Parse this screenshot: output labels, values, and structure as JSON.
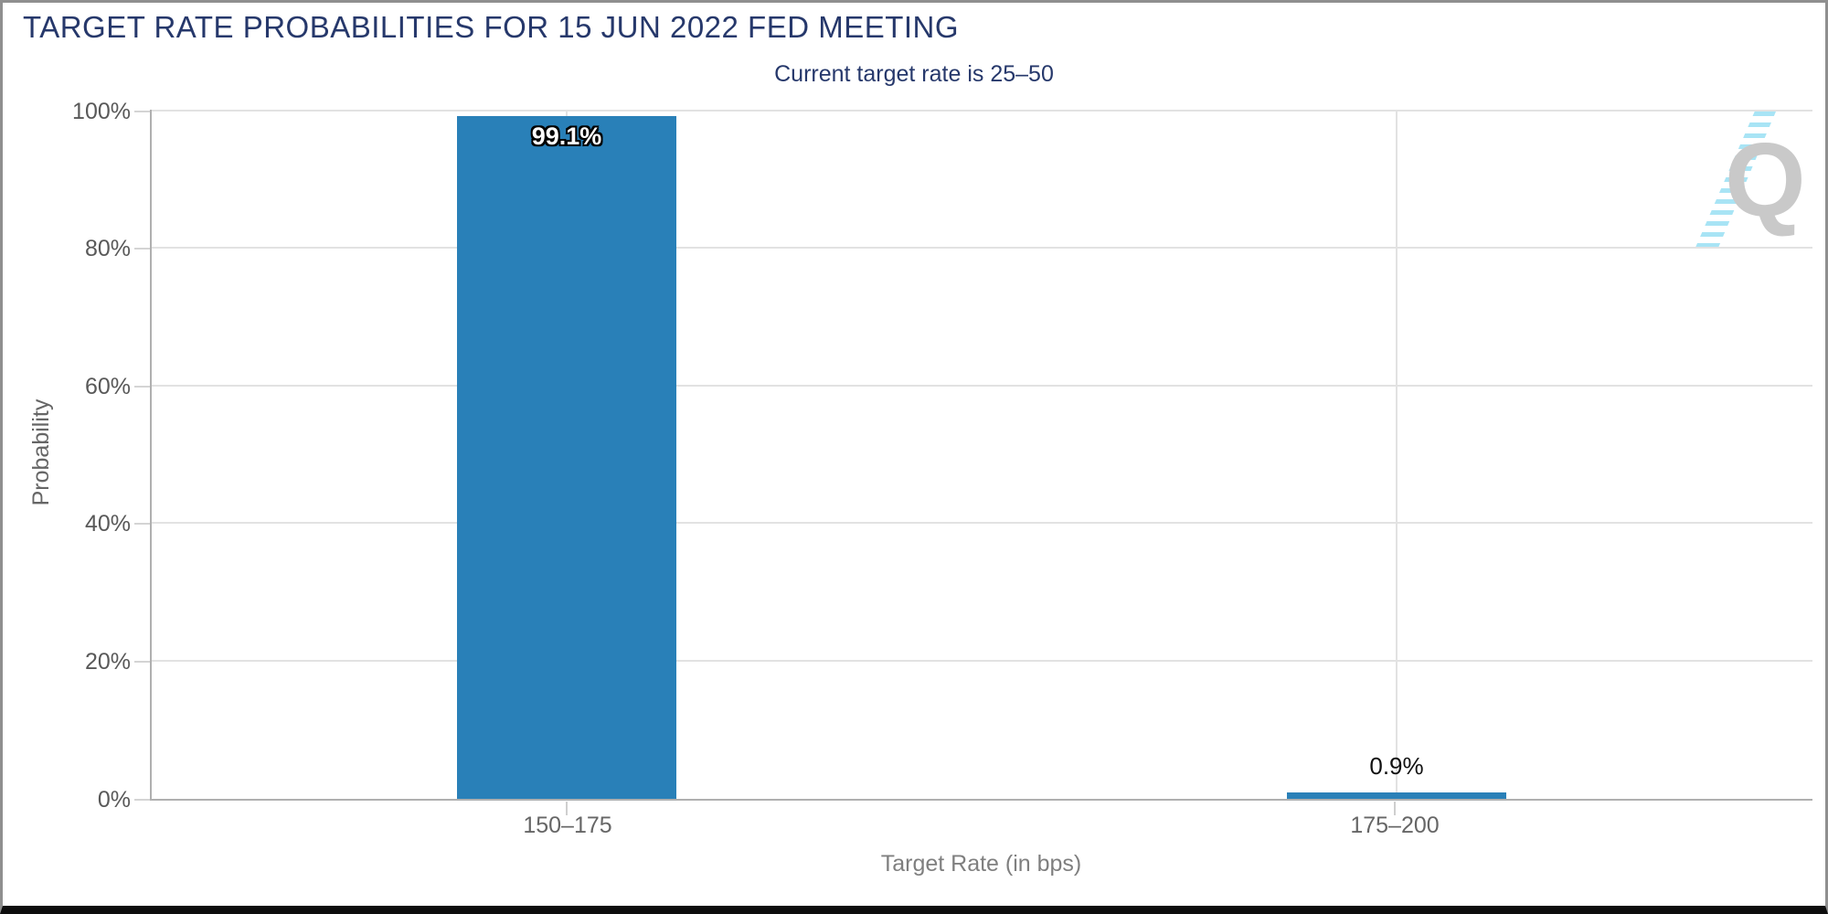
{
  "header": {
    "title": "TARGET RATE PROBABILITIES FOR 15 JUN 2022 FED MEETING",
    "subtitle": "Current target rate is 25–50"
  },
  "chart_data": {
    "type": "bar",
    "title": "TARGET RATE PROBABILITIES FOR 15 JUN 2022 FED MEETING",
    "subtitle": "Current target rate is 25–50",
    "categories": [
      "150–175",
      "175–200"
    ],
    "values": [
      99.1,
      0.9
    ],
    "value_labels": [
      "99.1%",
      "0.9%"
    ],
    "xlabel": "Target Rate (in bps)",
    "ylabel": "Probability",
    "ylim": [
      0,
      100
    ],
    "yticks": [
      "0%",
      "20%",
      "40%",
      "60%",
      "80%",
      "100%"
    ],
    "grid": true,
    "legend": "none",
    "bar_color": "#2980b8"
  },
  "colors": {
    "title_navy": "#26386b",
    "bar_blue": "#2980b8",
    "gridline": "#e2e2e2",
    "axis_line": "#b0b0b0",
    "tick_text": "#595959"
  },
  "watermark": {
    "letter": "Q"
  }
}
